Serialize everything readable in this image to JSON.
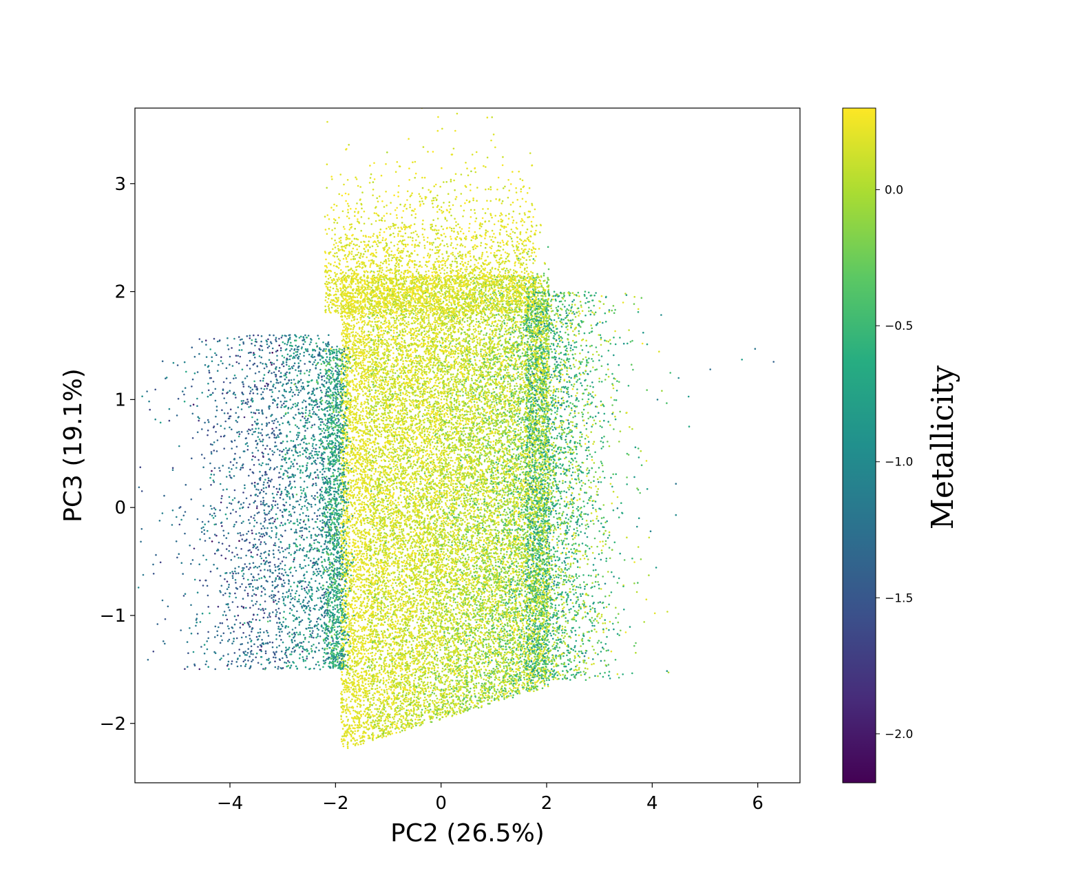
{
  "chart_data": {
    "type": "scatter",
    "title": "",
    "xlabel": "PC2 (26.5%)",
    "ylabel": "PC3 (19.1%)",
    "xlim": [
      -5.8,
      6.8
    ],
    "ylim": [
      -2.55,
      3.7
    ],
    "x_ticks": [
      {
        "value": -4,
        "label": "−4"
      },
      {
        "value": -2,
        "label": "−2"
      },
      {
        "value": 0,
        "label": "0"
      },
      {
        "value": 2,
        "label": "2"
      },
      {
        "value": 4,
        "label": "4"
      },
      {
        "value": 6,
        "label": "6"
      }
    ],
    "y_ticks": [
      {
        "value": -2,
        "label": "−2"
      },
      {
        "value": -1,
        "label": "−1"
      },
      {
        "value": 0,
        "label": "0"
      },
      {
        "value": 1,
        "label": "1"
      },
      {
        "value": 2,
        "label": "2"
      },
      {
        "value": 3,
        "label": "3"
      }
    ],
    "grid": false,
    "colormap": "viridis",
    "colorbar": {
      "label": "Metallicity",
      "range": [
        -2.18,
        0.3
      ],
      "ticks": [
        {
          "value": 0.0,
          "label": "0.0"
        },
        {
          "value": -0.5,
          "label": "−0.5"
        },
        {
          "value": -1.0,
          "label": "−1.0"
        },
        {
          "value": -1.5,
          "label": "−1.5"
        },
        {
          "value": -2.0,
          "label": "−2.0"
        }
      ]
    },
    "clusters": [
      {
        "x_range": [
          -1.9,
          2.0
        ],
        "y_range": [
          -2.25,
          2.3
        ],
        "metallicity_mean": -0.15,
        "density": "high"
      },
      {
        "x_range": [
          -5.3,
          -2.0
        ],
        "y_range": [
          -1.6,
          1.65
        ],
        "metallicity_mean": -1.1,
        "density": "low"
      },
      {
        "x_range": [
          1.5,
          3.8
        ],
        "y_range": [
          -1.8,
          2.1
        ],
        "metallicity_mean": -0.6,
        "density": "medium"
      }
    ],
    "outliers": [
      {
        "x": 5.95,
        "y": 1.47,
        "z": -1.2
      },
      {
        "x": 5.7,
        "y": 1.37,
        "z": -0.8
      },
      {
        "x": 6.3,
        "y": 1.35,
        "z": -1.4
      },
      {
        "x": 5.1,
        "y": 1.28,
        "z": -1.3
      },
      {
        "x": 4.5,
        "y": 1.2,
        "z": -1.0
      },
      {
        "x": 4.7,
        "y": 0.75,
        "z": -0.7
      },
      {
        "x": 4.45,
        "y": 0.22,
        "z": -1.2
      },
      {
        "x": 4.45,
        "y": -0.07,
        "z": -1.0
      },
      {
        "x": 4.05,
        "y": -0.98,
        "z": 0.2
      },
      {
        "x": 4.1,
        "y": 1.0,
        "z": -1.1
      },
      {
        "x": 0.95,
        "y": 3.4,
        "z": 0.2
      }
    ]
  }
}
